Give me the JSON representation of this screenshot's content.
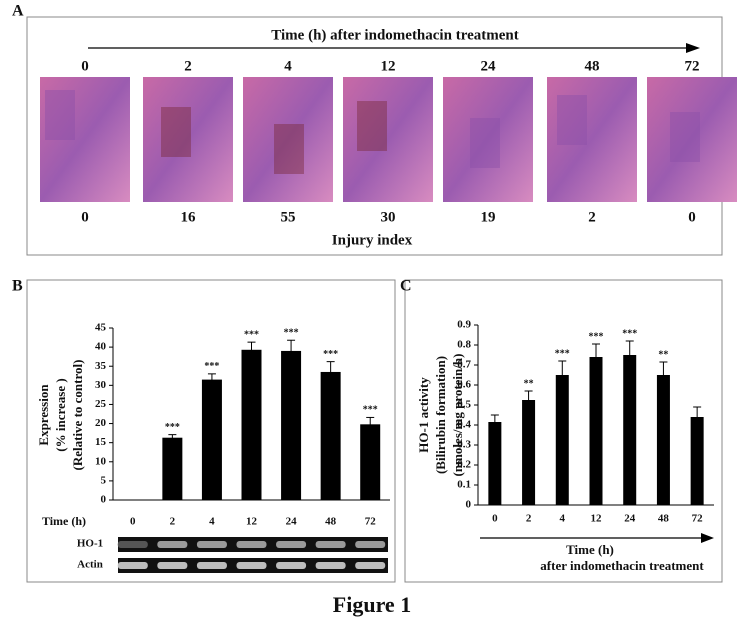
{
  "panel_a": {
    "label": "A",
    "title": "Time (h) after indomethacin treatment",
    "times": [
      "0",
      "2",
      "4",
      "12",
      "24",
      "48",
      "72"
    ],
    "injury_values": [
      0,
      16,
      55,
      30,
      19,
      2,
      0
    ],
    "injury_label": "Injury index"
  },
  "chart_data": [
    {
      "type": "bar",
      "panel_label": "B",
      "y_label_lines": [
        "Expression",
        "(% increase )",
        "(Relative to control)"
      ],
      "x_label": "Time (h)",
      "categories": [
        "0",
        "2",
        "4",
        "12",
        "24",
        "48",
        "72"
      ],
      "values": [
        0,
        16.3,
        31.5,
        39.3,
        39,
        33.5,
        19.8
      ],
      "errors": [
        null,
        0.8,
        1.5,
        2,
        2.8,
        2.7,
        1.8
      ],
      "annotations": [
        null,
        "***",
        "***",
        "***",
        "***",
        "***",
        "***"
      ],
      "color": "#000000",
      "ylim": [
        0,
        45
      ],
      "yticks": [
        0,
        5,
        10,
        15,
        20,
        25,
        30,
        35,
        40,
        45
      ],
      "blot_labels": [
        "HO-1",
        "Actin"
      ]
    },
    {
      "type": "bar",
      "panel_label": "C",
      "y_label_lines": [
        "HO-1 activity",
        "(Bilirubin formation)",
        "(nmoles/mg protein/h)"
      ],
      "x_label_lines": [
        "Time (h)",
        "after indomethacin treatment"
      ],
      "categories": [
        "0",
        "2",
        "4",
        "12",
        "24",
        "48",
        "72"
      ],
      "values": [
        0.415,
        0.525,
        0.65,
        0.74,
        0.75,
        0.65,
        0.44
      ],
      "errors": [
        0.035,
        0.045,
        0.07,
        0.065,
        0.07,
        0.065,
        0.05
      ],
      "annotations": [
        null,
        "**",
        "***",
        "***",
        "***",
        "**",
        null
      ],
      "color": "#000000",
      "ylim": [
        0,
        0.9
      ],
      "yticks": [
        0,
        0.1,
        0.2,
        0.3,
        0.4,
        0.5,
        0.6,
        0.7,
        0.8,
        0.9
      ]
    }
  ],
  "figure_caption": "Figure 1"
}
